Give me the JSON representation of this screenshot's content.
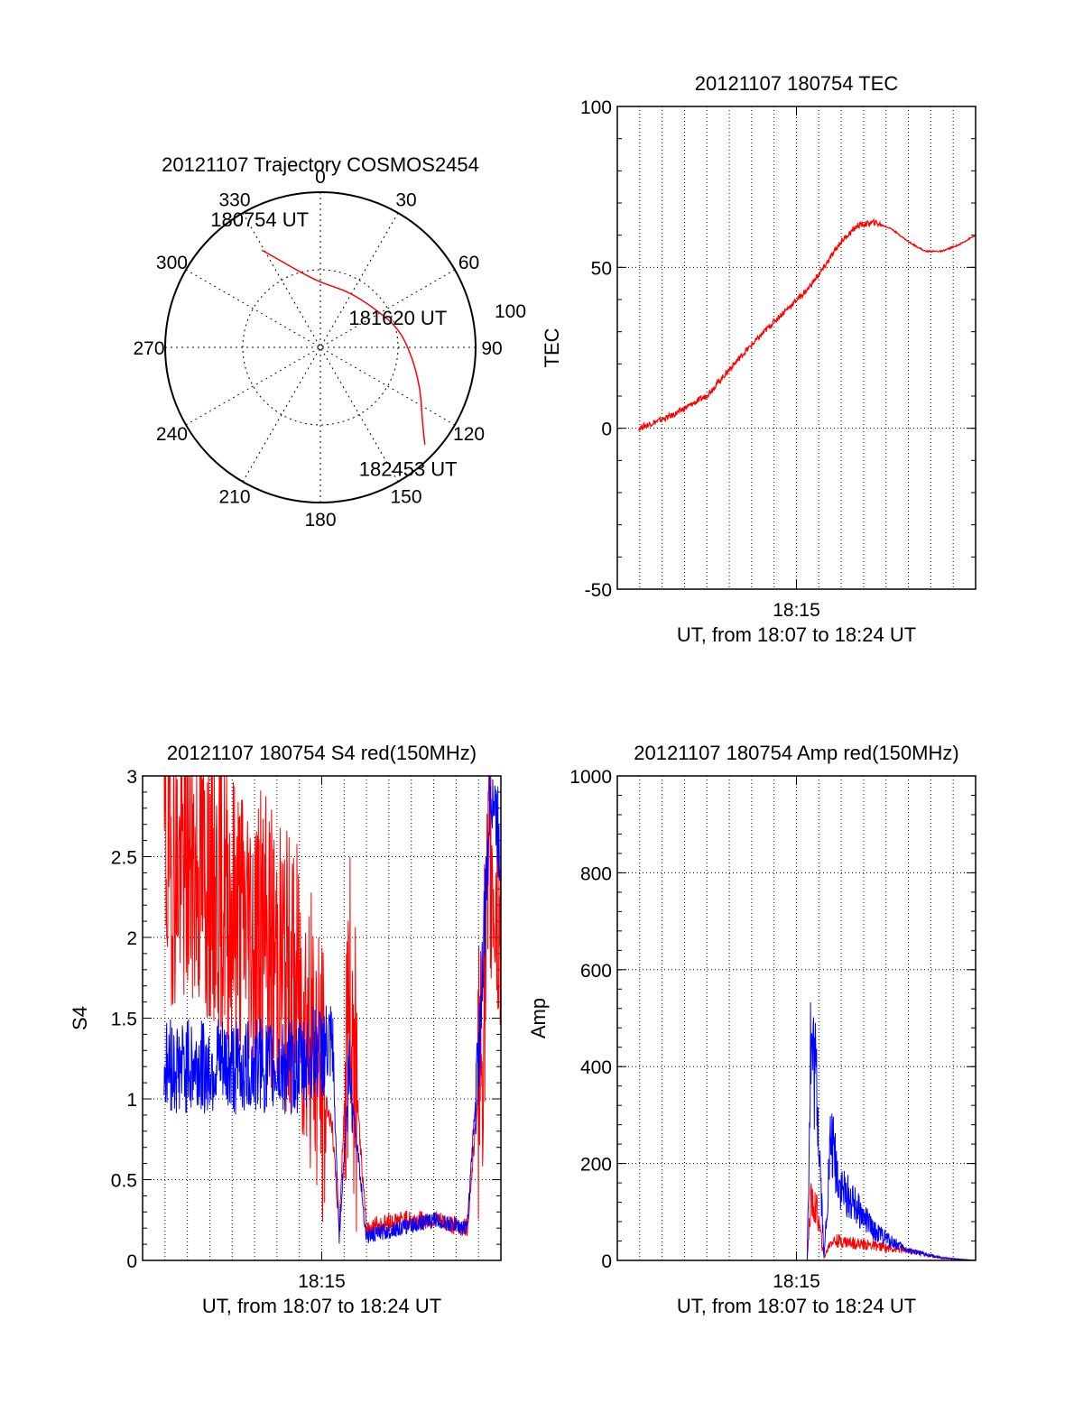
{
  "chart_data": [
    {
      "type": "polar",
      "title": "20121107 Trajectory COSMOS2454",
      "angle_labels": [
        "0",
        "30",
        "60",
        "90",
        "120",
        "150",
        "180",
        "210",
        "240",
        "270",
        "300",
        "330"
      ],
      "radius_label": "100",
      "trajectory": {
        "color": "#ff0000",
        "points_az_r": [
          [
            329,
            0.73
          ],
          [
            335,
            0.62
          ],
          [
            343,
            0.52
          ],
          [
            357,
            0.43
          ],
          [
            12,
            0.4
          ],
          [
            28,
            0.4
          ],
          [
            50,
            0.42
          ],
          [
            76,
            0.52
          ],
          [
            97,
            0.6
          ],
          [
            113,
            0.7
          ],
          [
            125,
            0.8
          ],
          [
            133,
            0.92
          ]
        ]
      },
      "annotations": [
        {
          "text": "180754 UT",
          "az": 340,
          "r": 0.88
        },
        {
          "text": "181620 UT",
          "az": 72,
          "r": 0.62
        },
        {
          "text": "182453 UT",
          "az": 140,
          "r": 1.02
        }
      ]
    },
    {
      "type": "line",
      "title": "20121107 180754 TEC",
      "xlabel": "UT, from 18:07 to 18:24 UT",
      "ylabel": "TEC",
      "ylim": [
        -50,
        100
      ],
      "yticks": [
        "-50",
        "0",
        "50",
        "100"
      ],
      "xtick_label": "18:15",
      "grid": true,
      "series": [
        {
          "color": "#ff0000",
          "x": [
            0,
            0.1,
            0.2,
            0.25,
            0.3,
            0.4,
            0.5,
            0.55,
            0.6,
            0.65,
            0.7,
            0.75,
            0.8,
            0.85,
            0.9,
            0.95,
            1.0
          ],
          "values": [
            0,
            4,
            10,
            16,
            22,
            33,
            43,
            50,
            58,
            63,
            64,
            62,
            58,
            55,
            55,
            57,
            60
          ]
        }
      ]
    },
    {
      "type": "line",
      "title": "20121107 180754 S4 red(150MHz)",
      "xlabel": "UT, from 18:07 to 18:24 UT",
      "ylabel": "S4",
      "ylim": [
        0,
        3
      ],
      "yticks": [
        "0",
        "0.5",
        "1",
        "1.5",
        "2",
        "2.5",
        "3"
      ],
      "xtick_label": "18:15",
      "grid": true,
      "series": [
        {
          "color": "#ff0000",
          "x": [
            0,
            0.1,
            0.2,
            0.3,
            0.4,
            0.45,
            0.5,
            0.52,
            0.55,
            0.6,
            0.7,
            0.8,
            0.9,
            0.94,
            0.97,
            1.0
          ],
          "values": [
            2.5,
            2.4,
            2.2,
            2.0,
            1.7,
            1.3,
            0.8,
            0.2,
            1.7,
            0.2,
            0.25,
            0.25,
            0.2,
            1.2,
            2.5,
            2.0
          ]
        },
        {
          "color": "#0000ff",
          "x": [
            0,
            0.1,
            0.2,
            0.3,
            0.4,
            0.45,
            0.5,
            0.52,
            0.55,
            0.6,
            0.7,
            0.8,
            0.9,
            0.94,
            0.97,
            1.0
          ],
          "values": [
            1.2,
            1.2,
            1.2,
            1.2,
            1.2,
            1.3,
            1.3,
            0.15,
            1.2,
            0.15,
            0.2,
            0.25,
            0.2,
            1.5,
            3.0,
            2.5
          ]
        }
      ]
    },
    {
      "type": "line",
      "title": "20121107 180754 Amp red(150MHz)",
      "xlabel": "UT, from 18:07 to 18:24 UT",
      "ylabel": "Amp",
      "ylim": [
        0,
        1000
      ],
      "yticks": [
        "0",
        "200",
        "400",
        "600",
        "800",
        "1000"
      ],
      "xtick_label": "18:15",
      "grid": true,
      "series": [
        {
          "color": "#ff0000",
          "x": [
            0,
            0.5,
            0.51,
            0.53,
            0.55,
            0.57,
            0.6,
            0.7,
            0.8,
            0.9,
            1.0
          ],
          "values": [
            0,
            0,
            120,
            100,
            5,
            40,
            40,
            30,
            20,
            5,
            0
          ]
        },
        {
          "color": "#0000ff",
          "x": [
            0,
            0.5,
            0.51,
            0.53,
            0.55,
            0.57,
            0.6,
            0.7,
            0.8,
            0.9,
            1.0
          ],
          "values": [
            0,
            0,
            450,
            350,
            5,
            250,
            150,
            60,
            20,
            5,
            0
          ]
        }
      ]
    }
  ]
}
